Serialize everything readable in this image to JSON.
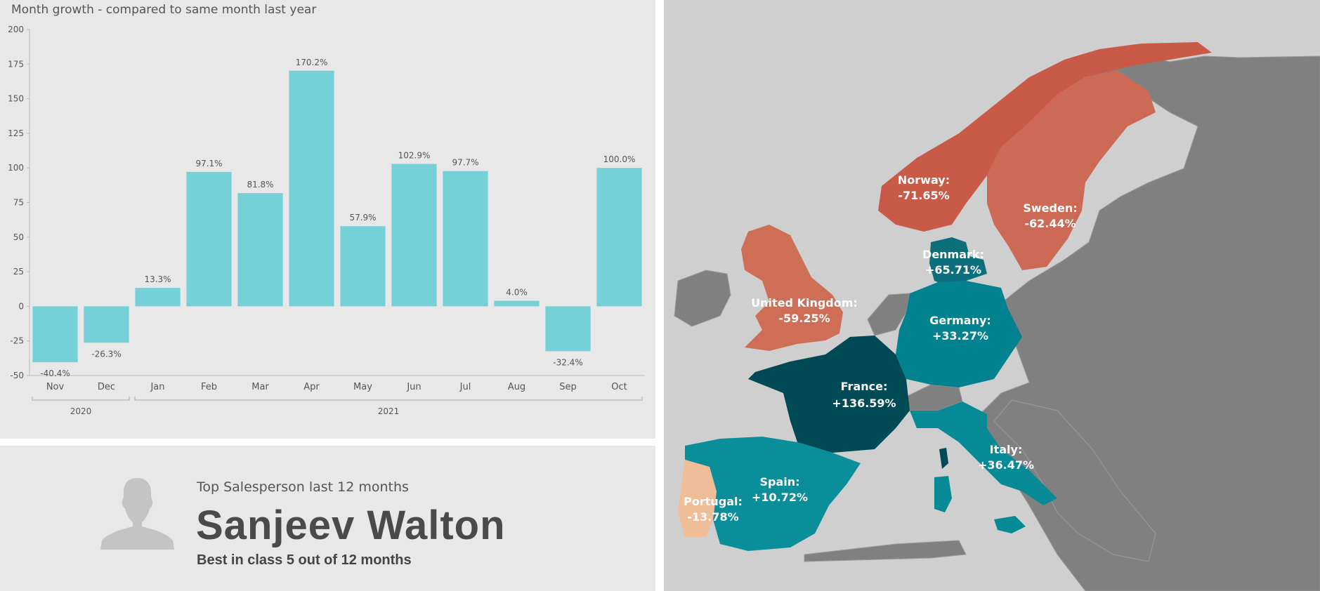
{
  "chart": {
    "title": "Month growth - compared to same month last year"
  },
  "chart_data": {
    "type": "bar",
    "title": "Month growth - compared to same month last year",
    "categories": [
      "Nov",
      "Dec",
      "Jan",
      "Feb",
      "Mar",
      "Apr",
      "May",
      "Jun",
      "Jul",
      "Aug",
      "Sep",
      "Oct"
    ],
    "groups": [
      {
        "label": "2020",
        "categories": [
          "Nov",
          "Dec"
        ]
      },
      {
        "label": "2021",
        "categories": [
          "Jan",
          "Feb",
          "Mar",
          "Apr",
          "May",
          "Jun",
          "Jul",
          "Aug",
          "Sep",
          "Oct"
        ]
      }
    ],
    "values": [
      -40.4,
      -26.3,
      13.3,
      97.1,
      81.8,
      170.2,
      57.9,
      102.9,
      97.7,
      4.0,
      -32.4,
      100.0
    ],
    "data_labels": [
      "-40.4%",
      "-26.3%",
      "13.3%",
      "97.1%",
      "81.8%",
      "170.2%",
      "57.9%",
      "102.9%",
      "97.7%",
      "4.0%",
      "-32.4%",
      "100.0%"
    ],
    "yticks": [
      200,
      175,
      150,
      125,
      100,
      75,
      50,
      25,
      0,
      -25,
      -50
    ],
    "ylim": [
      -50,
      200
    ],
    "xlabel": "",
    "ylabel": "",
    "grid": false,
    "bar_color": "#76d0d8"
  },
  "top_salesperson": {
    "label": "Top Salesperson last 12 months",
    "name": "Sanjeev Walton",
    "subtitle": "Best in class 5 out of 12 months",
    "avatar_icon": "person-silhouette-icon"
  },
  "map": {
    "countries": [
      {
        "key": "norway",
        "name": "Norway:",
        "value": "-71.65%",
        "color": "#c95a48"
      },
      {
        "key": "sweden",
        "name": "Sweden:",
        "value": "-62.44%",
        "color": "#cc6a55"
      },
      {
        "key": "denmark",
        "name": "Denmark:",
        "value": "+65.71%",
        "color": "#0d6f7c"
      },
      {
        "key": "uk",
        "name": "United Kingdom:",
        "value": "-59.25%",
        "color": "#cf6e57"
      },
      {
        "key": "germany",
        "name": "Germany:",
        "value": "+33.27%",
        "color": "#02818e"
      },
      {
        "key": "france",
        "name": "France:",
        "value": "+136.59%",
        "color": "#004a55"
      },
      {
        "key": "italy",
        "name": "Italy:",
        "value": "+36.47%",
        "color": "#058a96"
      },
      {
        "key": "spain",
        "name": "Spain:",
        "value": "+10.72%",
        "color": "#0a8f9a"
      },
      {
        "key": "portugal",
        "name": "Portugal:",
        "value": "-13.78%",
        "color": "#f0bd99"
      }
    ],
    "other_land_color": "#808080",
    "sea_color": "#cfcfcf"
  }
}
